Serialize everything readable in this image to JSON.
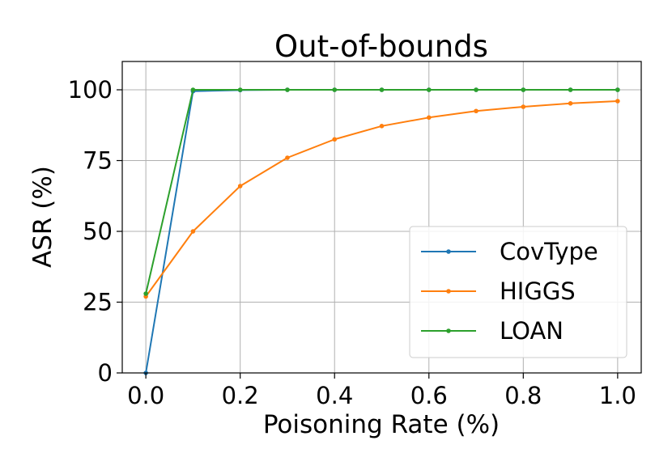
{
  "chart_data": {
    "type": "line",
    "title": "Out-of-bounds",
    "xlabel": "Poisoning Rate (%)",
    "ylabel": "ASR (%)",
    "xlim": [
      -0.05,
      1.05
    ],
    "ylim": [
      0,
      110
    ],
    "xticks": [
      0.0,
      0.2,
      0.4,
      0.6,
      0.8,
      1.0
    ],
    "xtick_labels": [
      "0.0",
      "0.2",
      "0.4",
      "0.6",
      "0.8",
      "1.0"
    ],
    "yticks": [
      0,
      25,
      50,
      75,
      100
    ],
    "ytick_labels": [
      "0",
      "25",
      "50",
      "75",
      "100"
    ],
    "grid": true,
    "legend_position": "lower-right",
    "x": [
      0.0,
      0.1,
      0.2,
      0.3,
      0.4,
      0.5,
      0.6,
      0.7,
      0.8,
      0.9,
      1.0
    ],
    "series": [
      {
        "name": "CovType",
        "color": "#1f77b4",
        "values": [
          0,
          99.5,
          99.9,
          100,
          100,
          100,
          100,
          100,
          100,
          100,
          100
        ]
      },
      {
        "name": "HIGGS",
        "color": "#ff7f0e",
        "values": [
          27,
          50,
          66,
          76,
          82.5,
          87.2,
          90.2,
          92.5,
          94,
          95.2,
          96
        ]
      },
      {
        "name": "LOAN",
        "color": "#2ca02c",
        "values": [
          28,
          100,
          100,
          100,
          100,
          100,
          100,
          100,
          100,
          100,
          100
        ]
      }
    ]
  }
}
